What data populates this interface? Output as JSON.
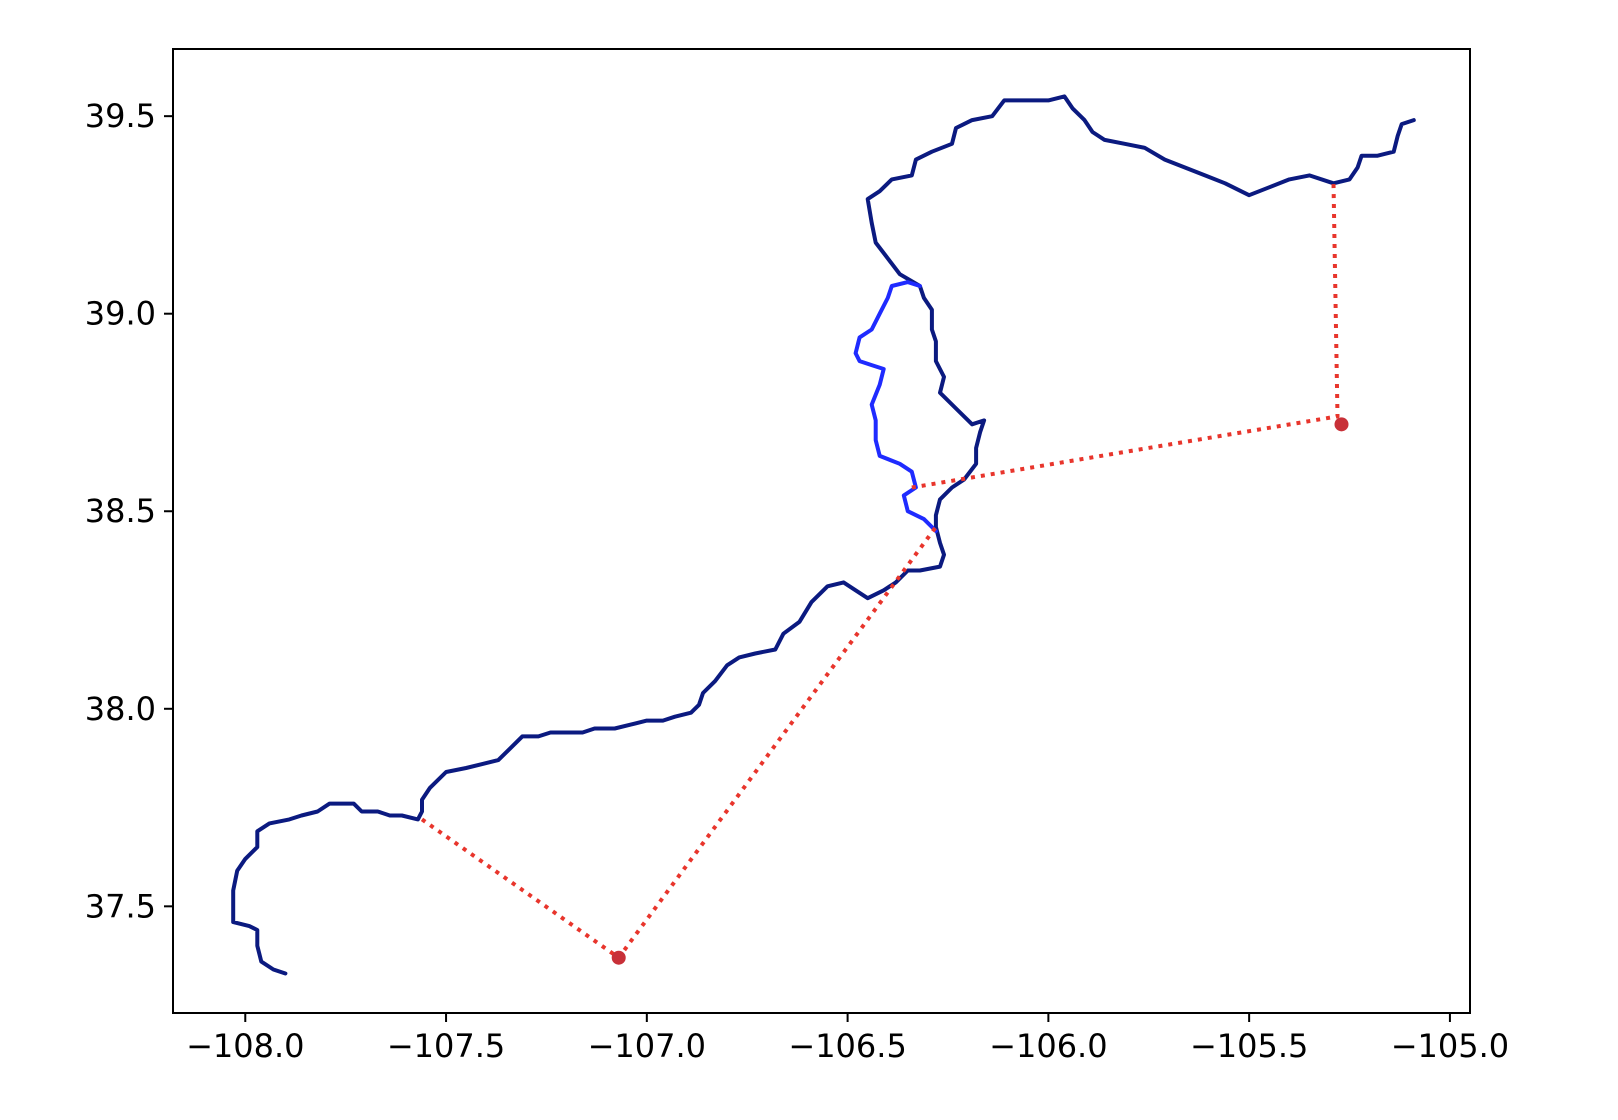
{
  "colors": {
    "main_route": "#0b1a80",
    "alternate_route": "#1f2bff",
    "connector": "#e8352c",
    "connector_dot": "#c83038"
  },
  "chart_data": {
    "type": "line",
    "title": "",
    "xlabel": "",
    "ylabel": "",
    "xlim": [
      -108.18,
      -104.95
    ],
    "ylim": [
      37.23,
      39.67
    ],
    "grid": false,
    "legend": "none",
    "x_ticks": [
      -108.0,
      -107.5,
      -107.0,
      -106.5,
      -106.0,
      -105.5,
      -105.0
    ],
    "x_tick_labels": [
      "−108.0",
      "−107.5",
      "−107.0",
      "−106.5",
      "−106.0",
      "−105.5",
      "−105.0"
    ],
    "y_ticks": [
      37.5,
      38.0,
      38.5,
      39.0,
      39.5
    ],
    "y_tick_labels": [
      "37.5",
      "38.0",
      "38.5",
      "39.0",
      "39.5"
    ],
    "series": [
      {
        "style": "solid",
        "color": "#0b1a80",
        "points": [
          [
            -107.9,
            37.33
          ],
          [
            -107.93,
            37.34
          ],
          [
            -107.96,
            37.36
          ],
          [
            -107.97,
            37.4
          ],
          [
            -107.97,
            37.44
          ],
          [
            -107.99,
            37.45
          ],
          [
            -108.03,
            37.46
          ],
          [
            -108.03,
            37.5
          ],
          [
            -108.03,
            37.54
          ],
          [
            -108.02,
            37.59
          ],
          [
            -108.0,
            37.62
          ],
          [
            -107.97,
            37.65
          ],
          [
            -107.97,
            37.69
          ],
          [
            -107.94,
            37.71
          ],
          [
            -107.89,
            37.72
          ],
          [
            -107.86,
            37.73
          ],
          [
            -107.82,
            37.74
          ],
          [
            -107.79,
            37.76
          ],
          [
            -107.76,
            37.76
          ],
          [
            -107.73,
            37.76
          ],
          [
            -107.71,
            37.74
          ],
          [
            -107.67,
            37.74
          ],
          [
            -107.64,
            37.73
          ],
          [
            -107.61,
            37.73
          ],
          [
            -107.57,
            37.72
          ],
          [
            -107.56,
            37.74
          ],
          [
            -107.56,
            37.77
          ],
          [
            -107.54,
            37.8
          ],
          [
            -107.5,
            37.84
          ],
          [
            -107.45,
            37.85
          ],
          [
            -107.41,
            37.86
          ],
          [
            -107.37,
            37.87
          ],
          [
            -107.34,
            37.9
          ],
          [
            -107.31,
            37.93
          ],
          [
            -107.27,
            37.93
          ],
          [
            -107.24,
            37.94
          ],
          [
            -107.2,
            37.94
          ],
          [
            -107.16,
            37.94
          ],
          [
            -107.13,
            37.95
          ],
          [
            -107.08,
            37.95
          ],
          [
            -107.04,
            37.96
          ],
          [
            -107.0,
            37.97
          ],
          [
            -106.96,
            37.97
          ],
          [
            -106.93,
            37.98
          ],
          [
            -106.89,
            37.99
          ],
          [
            -106.87,
            38.01
          ],
          [
            -106.86,
            38.04
          ],
          [
            -106.83,
            38.07
          ],
          [
            -106.8,
            38.11
          ],
          [
            -106.77,
            38.13
          ],
          [
            -106.73,
            38.14
          ],
          [
            -106.68,
            38.15
          ],
          [
            -106.66,
            38.19
          ],
          [
            -106.62,
            38.22
          ],
          [
            -106.59,
            38.27
          ],
          [
            -106.55,
            38.31
          ],
          [
            -106.51,
            38.32
          ],
          [
            -106.48,
            38.3
          ],
          [
            -106.45,
            38.28
          ],
          [
            -106.41,
            38.3
          ],
          [
            -106.38,
            38.32
          ],
          [
            -106.35,
            38.35
          ],
          [
            -106.32,
            38.35
          ],
          [
            -106.27,
            38.36
          ],
          [
            -106.26,
            38.39
          ],
          [
            -106.27,
            38.42
          ],
          [
            -106.28,
            38.46
          ],
          [
            -106.28,
            38.49
          ],
          [
            -106.27,
            38.53
          ],
          [
            -106.24,
            38.56
          ],
          [
            -106.21,
            38.58
          ],
          [
            -106.18,
            38.62
          ],
          [
            -106.18,
            38.66
          ],
          [
            -106.17,
            38.7
          ],
          [
            -106.16,
            38.73
          ],
          [
            -106.19,
            38.72
          ],
          [
            -106.23,
            38.76
          ],
          [
            -106.27,
            38.8
          ],
          [
            -106.26,
            38.84
          ],
          [
            -106.28,
            38.88
          ],
          [
            -106.28,
            38.93
          ],
          [
            -106.29,
            38.96
          ],
          [
            -106.29,
            39.01
          ],
          [
            -106.31,
            39.04
          ],
          [
            -106.32,
            39.07
          ],
          [
            -106.37,
            39.1
          ],
          [
            -106.4,
            39.14
          ],
          [
            -106.43,
            39.18
          ],
          [
            -106.44,
            39.23
          ],
          [
            -106.45,
            39.29
          ],
          [
            -106.42,
            39.31
          ],
          [
            -106.39,
            39.34
          ],
          [
            -106.34,
            39.35
          ],
          [
            -106.33,
            39.39
          ],
          [
            -106.29,
            39.41
          ],
          [
            -106.24,
            39.43
          ],
          [
            -106.23,
            39.47
          ],
          [
            -106.19,
            39.49
          ],
          [
            -106.14,
            39.5
          ],
          [
            -106.11,
            39.54
          ],
          [
            -106.06,
            39.54
          ],
          [
            -106.0,
            39.54
          ],
          [
            -105.96,
            39.55
          ],
          [
            -105.94,
            39.52
          ],
          [
            -105.91,
            39.49
          ],
          [
            -105.89,
            39.46
          ],
          [
            -105.86,
            39.44
          ],
          [
            -105.81,
            39.43
          ],
          [
            -105.76,
            39.42
          ],
          [
            -105.71,
            39.39
          ],
          [
            -105.66,
            39.37
          ],
          [
            -105.61,
            39.35
          ],
          [
            -105.56,
            39.33
          ],
          [
            -105.5,
            39.3
          ],
          [
            -105.45,
            39.32
          ],
          [
            -105.4,
            39.34
          ],
          [
            -105.35,
            39.35
          ],
          [
            -105.29,
            39.33
          ],
          [
            -105.25,
            39.34
          ],
          [
            -105.23,
            39.37
          ],
          [
            -105.22,
            39.4
          ],
          [
            -105.18,
            39.4
          ],
          [
            -105.14,
            39.41
          ],
          [
            -105.13,
            39.45
          ],
          [
            -105.12,
            39.48
          ],
          [
            -105.09,
            39.49
          ]
        ]
      },
      {
        "style": "solid",
        "color": "#1f2bff",
        "points": [
          [
            -106.28,
            38.45
          ],
          [
            -106.31,
            38.48
          ],
          [
            -106.35,
            38.5
          ],
          [
            -106.36,
            38.54
          ],
          [
            -106.33,
            38.56
          ],
          [
            -106.34,
            38.6
          ],
          [
            -106.37,
            38.62
          ],
          [
            -106.42,
            38.64
          ],
          [
            -106.43,
            38.68
          ],
          [
            -106.43,
            38.73
          ],
          [
            -106.44,
            38.77
          ],
          [
            -106.42,
            38.82
          ],
          [
            -106.41,
            38.86
          ],
          [
            -106.44,
            38.87
          ],
          [
            -106.47,
            38.88
          ],
          [
            -106.48,
            38.9
          ],
          [
            -106.47,
            38.94
          ],
          [
            -106.44,
            38.96
          ],
          [
            -106.42,
            39.0
          ],
          [
            -106.4,
            39.04
          ],
          [
            -106.39,
            39.07
          ],
          [
            -106.35,
            39.08
          ],
          [
            -106.32,
            39.07
          ]
        ]
      },
      {
        "style": "dotted",
        "color": "#e8352c",
        "points": [
          [
            -107.56,
            37.72
          ],
          [
            -107.07,
            37.37
          ],
          [
            -106.28,
            38.46
          ]
        ]
      },
      {
        "style": "dotted",
        "color": "#e8352c",
        "points": [
          [
            -106.34,
            38.56
          ],
          [
            -105.28,
            38.74
          ],
          [
            -105.29,
            39.33
          ]
        ]
      }
    ],
    "markers": [
      {
        "x": -107.07,
        "y": 37.37,
        "color": "#c83038"
      },
      {
        "x": -105.27,
        "y": 38.72,
        "color": "#c83038"
      }
    ]
  }
}
